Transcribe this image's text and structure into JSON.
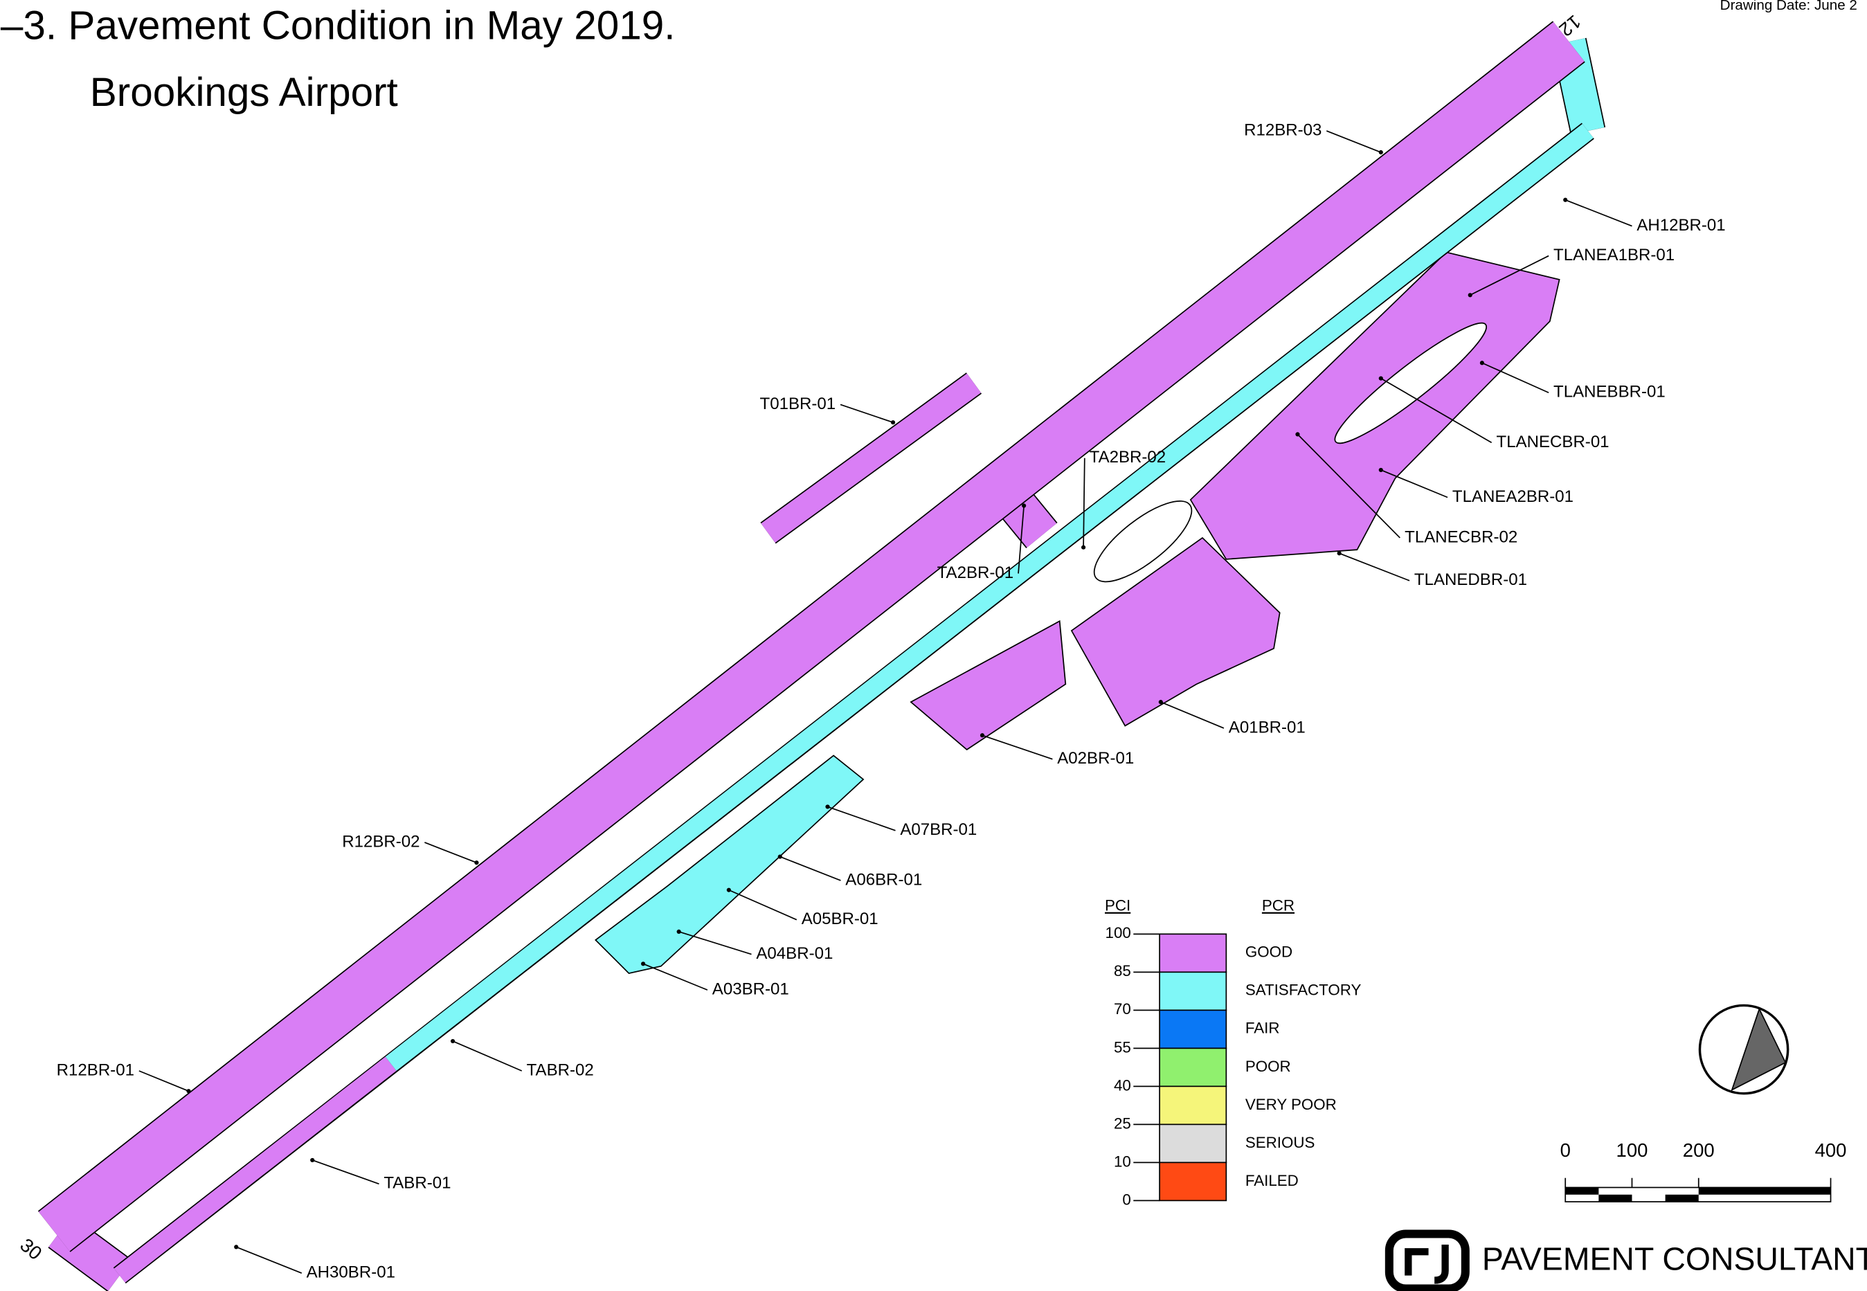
{
  "title": "–3.  Pavement Condition in May 2019.",
  "subtitle": "Brookings Airport",
  "drawing_date": "Drawing Date:   June 2",
  "runway_ends": [
    "12",
    "30"
  ],
  "sections": [
    "R12BR-03",
    "AH12BR-01",
    "TLANEA1BR-01",
    "TLANEBBR-01",
    "TLANECBR-01",
    "TLANEA2BR-01",
    "TLANECBR-02",
    "TLANEDBR-01",
    "T01BR-01",
    "TA2BR-02",
    "TA2BR-01",
    "A01BR-01",
    "A02BR-01",
    "A07BR-01",
    "A06BR-01",
    "A05BR-01",
    "A04BR-01",
    "A03BR-01",
    "R12BR-02",
    "R12BR-01",
    "TABR-02",
    "TABR-01",
    "AH30BR-01"
  ],
  "legend": {
    "pci_header": "PCI",
    "pcr_header": "PCR",
    "pci_ticks": [
      100,
      85,
      70,
      55,
      40,
      25,
      10,
      0
    ],
    "conditions": [
      {
        "name": "GOOD",
        "color": "#d97ef5"
      },
      {
        "name": "SATISFACTORY",
        "color": "#7ff7f7"
      },
      {
        "name": "FAIR",
        "color": "#0a78f5"
      },
      {
        "name": "POOR",
        "color": "#90f06e"
      },
      {
        "name": "VERY  POOR",
        "color": "#f5f57a"
      },
      {
        "name": "SERIOUS",
        "color": "#dcdcdc"
      },
      {
        "name": "FAILED",
        "color": "#ff4a14"
      }
    ]
  },
  "scale_bar": {
    "labels": [
      0,
      100,
      200,
      400
    ]
  },
  "company": "PAVEMENT CONSULTANTS"
}
